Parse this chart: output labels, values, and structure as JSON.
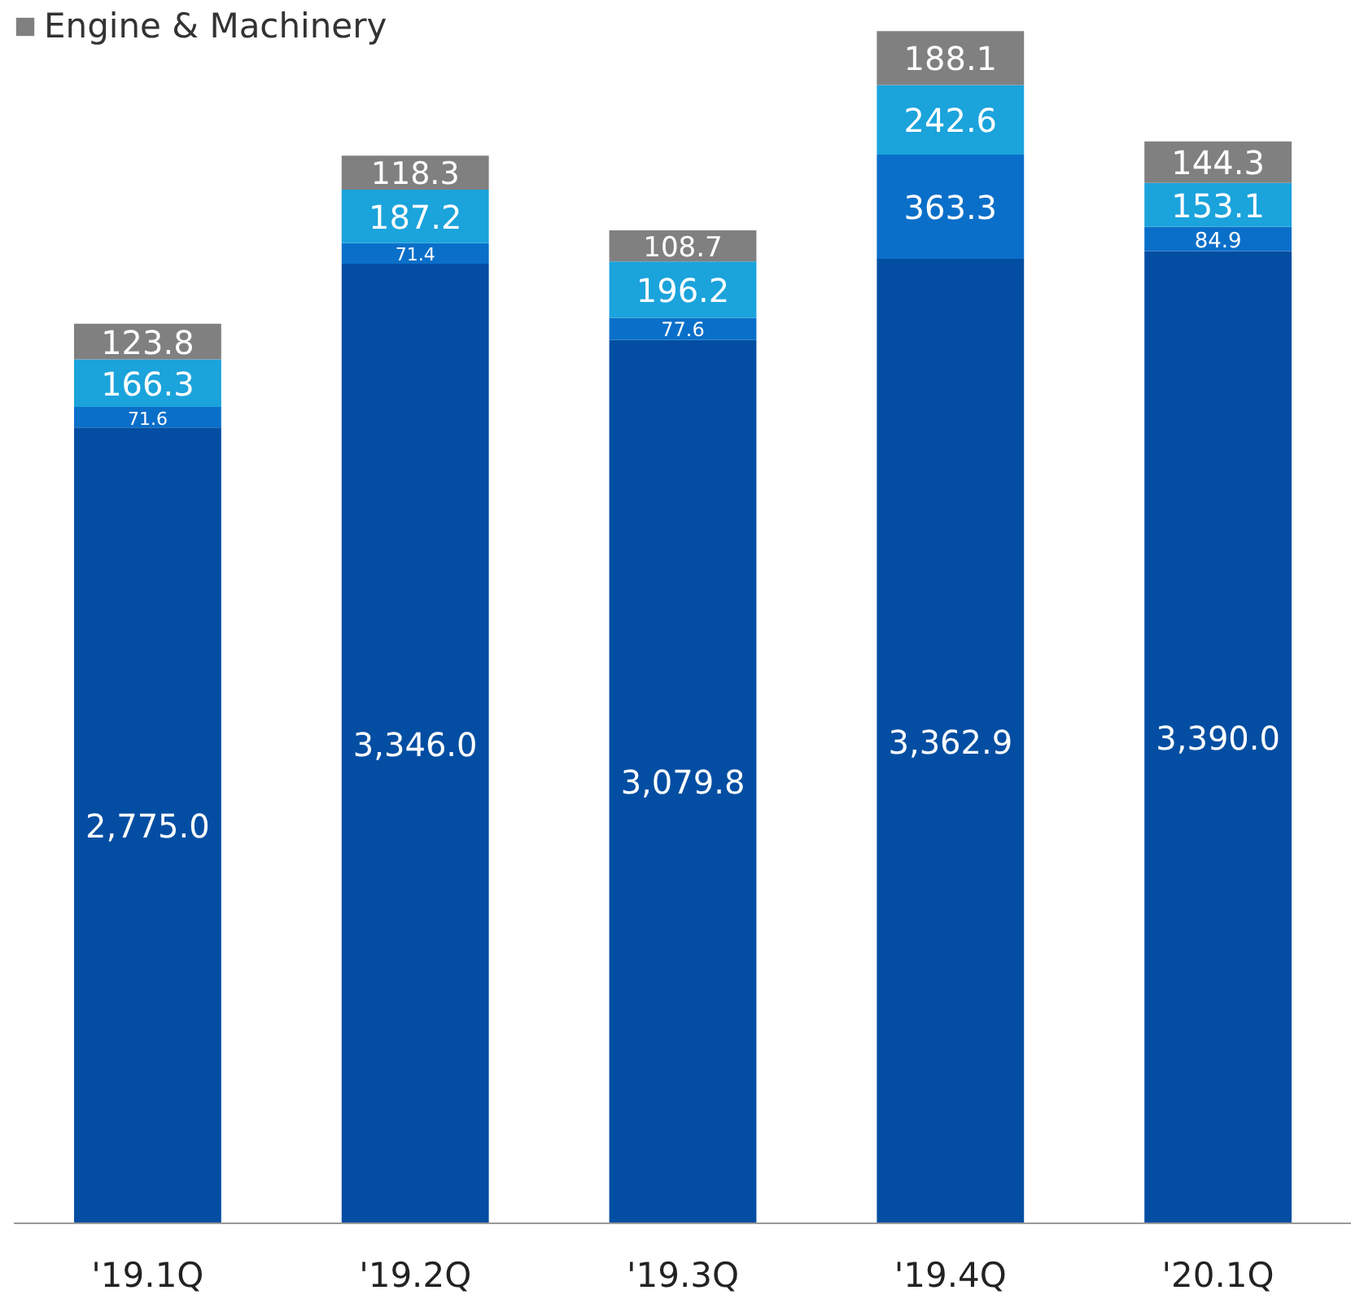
{
  "chart_data": {
    "type": "bar",
    "stacked": true,
    "categories": [
      "'19.1Q",
      "'19.2Q",
      "'19.3Q",
      "'19.4Q",
      "'20.1Q"
    ],
    "series": [
      {
        "color": "#034ea2",
        "values": [
          2775.0,
          3346.0,
          3079.8,
          3362.9,
          3390.0
        ],
        "value_labels": [
          "2,775.0",
          "3,346.0",
          "3,079.8",
          "3,362.9",
          "3,390.0"
        ]
      },
      {
        "color": "#0a6fc9",
        "values": [
          71.6,
          71.4,
          77.6,
          363.3,
          84.9
        ],
        "value_labels": [
          "71.6",
          "71.4",
          "77.6",
          "363.3",
          "84.9"
        ]
      },
      {
        "color": "#1ba3dc",
        "values": [
          166.3,
          187.2,
          196.2,
          242.6,
          153.1
        ],
        "value_labels": [
          "166.3",
          "187.2",
          "196.2",
          "242.6",
          "153.1"
        ]
      },
      {
        "name": "Engine & Machinery",
        "color": "#808080",
        "values": [
          123.8,
          118.3,
          108.7,
          188.1,
          144.3
        ],
        "value_labels": [
          "123.8",
          "118.3",
          "108.7",
          "188.1",
          "144.3"
        ]
      }
    ],
    "legend": "top left",
    "grid": false
  }
}
